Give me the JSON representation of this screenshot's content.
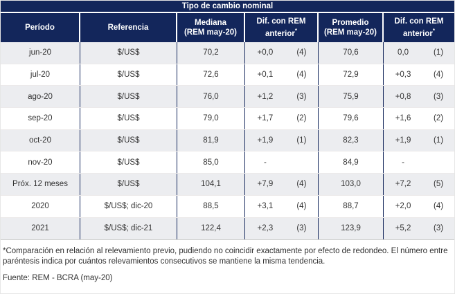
{
  "title": "Tipo de cambio nominal",
  "colors": {
    "navy": "#13265b",
    "alt_row": "#ecedf0",
    "text": "#333333",
    "divider": "#d9d9d9"
  },
  "columns": [
    {
      "line1": "Período",
      "line2": "",
      "sup": ""
    },
    {
      "line1": "Referencia",
      "line2": "",
      "sup": ""
    },
    {
      "line1": "Mediana",
      "line2": "(REM may-20)",
      "sup": ""
    },
    {
      "line1": "Dif. con REM",
      "line2": "anterior",
      "sup": "*"
    },
    {
      "line1": "Promedio",
      "line2": "(REM may-20)",
      "sup": ""
    },
    {
      "line1": "Dif. con REM",
      "line2": "anterior",
      "sup": "*"
    }
  ],
  "rows": [
    {
      "period": "jun-20",
      "reference": "$/US$",
      "mediana": "70,2",
      "dif_mediana": "+0,0",
      "dif_mediana_n": "(4)",
      "promedio": "70,6",
      "dif_promedio": "0,0",
      "dif_promedio_n": "(1)"
    },
    {
      "period": "jul-20",
      "reference": "$/US$",
      "mediana": "72,6",
      "dif_mediana": "+0,1",
      "dif_mediana_n": "(4)",
      "promedio": "72,9",
      "dif_promedio": "+0,3",
      "dif_promedio_n": "(4)"
    },
    {
      "period": "ago-20",
      "reference": "$/US$",
      "mediana": "76,0",
      "dif_mediana": "+1,2",
      "dif_mediana_n": "(3)",
      "promedio": "75,9",
      "dif_promedio": "+0,8",
      "dif_promedio_n": "(3)"
    },
    {
      "period": "sep-20",
      "reference": "$/US$",
      "mediana": "79,0",
      "dif_mediana": "+1,7",
      "dif_mediana_n": "(2)",
      "promedio": "79,6",
      "dif_promedio": "+1,6",
      "dif_promedio_n": "(2)"
    },
    {
      "period": "oct-20",
      "reference": "$/US$",
      "mediana": "81,9",
      "dif_mediana": "+1,9",
      "dif_mediana_n": "(1)",
      "promedio": "82,3",
      "dif_promedio": "+1,9",
      "dif_promedio_n": "(1)"
    },
    {
      "period": "nov-20",
      "reference": "$/US$",
      "mediana": "85,0",
      "dif_mediana": "-",
      "dif_mediana_n": "",
      "promedio": "84,9",
      "dif_promedio": "-",
      "dif_promedio_n": ""
    },
    {
      "period": "Próx. 12 meses",
      "reference": "$/US$",
      "mediana": "104,1",
      "dif_mediana": "+7,9",
      "dif_mediana_n": "(4)",
      "promedio": "103,0",
      "dif_promedio": "+7,2",
      "dif_promedio_n": "(5)"
    },
    {
      "period": "2020",
      "reference": "$/US$; dic-20",
      "mediana": "88,5",
      "dif_mediana": "+3,1",
      "dif_mediana_n": "(4)",
      "promedio": "88,7",
      "dif_promedio": "+2,0",
      "dif_promedio_n": "(4)"
    },
    {
      "period": "2021",
      "reference": "$/US$; dic-21",
      "mediana": "122,4",
      "dif_mediana": "+2,3",
      "dif_mediana_n": "(3)",
      "promedio": "123,9",
      "dif_promedio": "+5,2",
      "dif_promedio_n": "(3)"
    }
  ],
  "footnote": "*Comparación en relación al relevamiento previo, pudiendo no coincidir exactamente por efecto de redondeo. El número entre paréntesis indica por cuántos relevamientos consecutivos se mantiene la misma tendencia.",
  "source": "Fuente: REM - BCRA (may-20)"
}
